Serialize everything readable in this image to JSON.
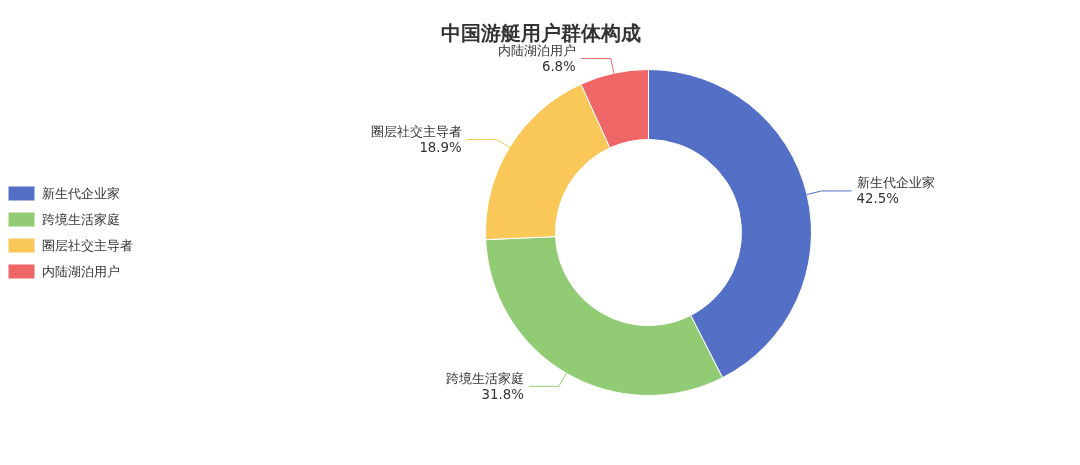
{
  "chart_data": {
    "type": "donut",
    "title": "中国游艇用户群体构成",
    "categories": [
      "新生代企业家",
      "跨境生活家庭",
      "圈层社交主导者",
      "内陆湖泊用户"
    ],
    "values": [
      42.5,
      31.8,
      18.9,
      6.8
    ],
    "value_labels": [
      "42.5%",
      "31.8%",
      "18.9%",
      "6.8%"
    ],
    "colors": [
      "#5470c6",
      "#91cc75",
      "#fac858",
      "#ee6666"
    ],
    "legend": "left"
  }
}
